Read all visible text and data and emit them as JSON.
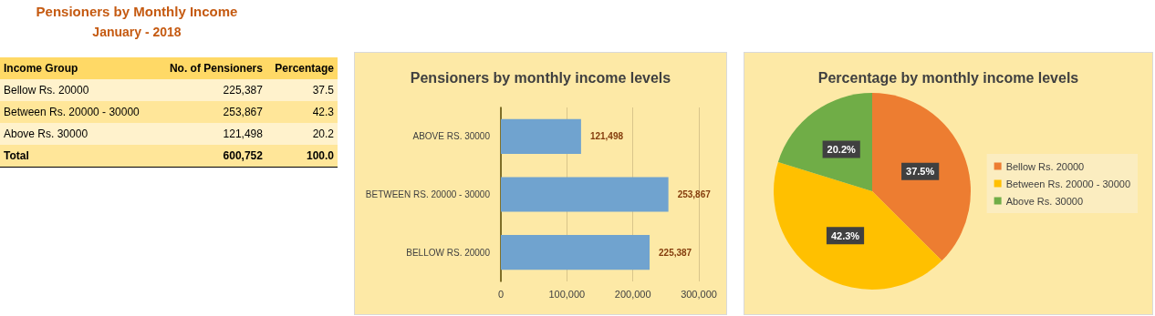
{
  "chart_data": [
    {
      "type": "other",
      "title": "Pensioners by Monthly Income",
      "subtitle": "January - 2018",
      "xlabel": "Income Group",
      "categories": [
        "Bellow Rs. 20000",
        "Between Rs. 20000 - 30000",
        "Above Rs. 30000",
        "Total"
      ],
      "series": [
        {
          "name": "No. of Pensioners",
          "values": [
            225387,
            253867,
            121498,
            600752
          ],
          "value_labels": [
            "225,387",
            "253,867",
            "121,498",
            "600,752"
          ],
          "colors": [
            "#fff2cc",
            "#ffe699",
            "#fff2cc",
            "#ffe699"
          ]
        },
        {
          "name": "Percentage",
          "values": [
            37.5,
            42.3,
            20.2,
            100.0
          ],
          "value_labels": [
            "37.5",
            "42.3",
            "20.2",
            "100.0"
          ],
          "colors": [
            "#fff2cc",
            "#ffe699",
            "#fff2cc",
            "#ffe699"
          ]
        }
      ]
    },
    {
      "type": "bar",
      "orientation": "horizontal",
      "title": "Pensioners by monthly income levels",
      "categories": [
        "ABOVE RS. 30000",
        "BETWEEN RS. 20000 - 30000",
        "BELLOW RS. 20000"
      ],
      "values": [
        121498,
        253867,
        225387
      ],
      "value_labels": [
        "121,498",
        "253,867",
        "225,387"
      ],
      "color": "#70a3cf",
      "xlim": [
        0,
        300000
      ],
      "xticks": [
        0,
        {
          "value": 100000,
          "label": "100,000"
        },
        {
          "value": 200000,
          "label": "200,000"
        },
        {
          "value": 300000,
          "label": "300,000"
        }
      ],
      "grid": "x",
      "legend": false
    },
    {
      "type": "pie",
      "title": "Percentage by monthly income levels",
      "categories": [
        "Bellow Rs. 20000",
        "Between Rs. 20000 - 30000",
        "Above Rs. 30000"
      ],
      "values": [
        37.5,
        42.3,
        20.2
      ],
      "value_labels": [
        "37.5%",
        "42.3%",
        "20.2%"
      ],
      "colors": [
        "#ed7d31",
        "#ffc000",
        "#70ad47"
      ],
      "legend": "right"
    }
  ]
}
